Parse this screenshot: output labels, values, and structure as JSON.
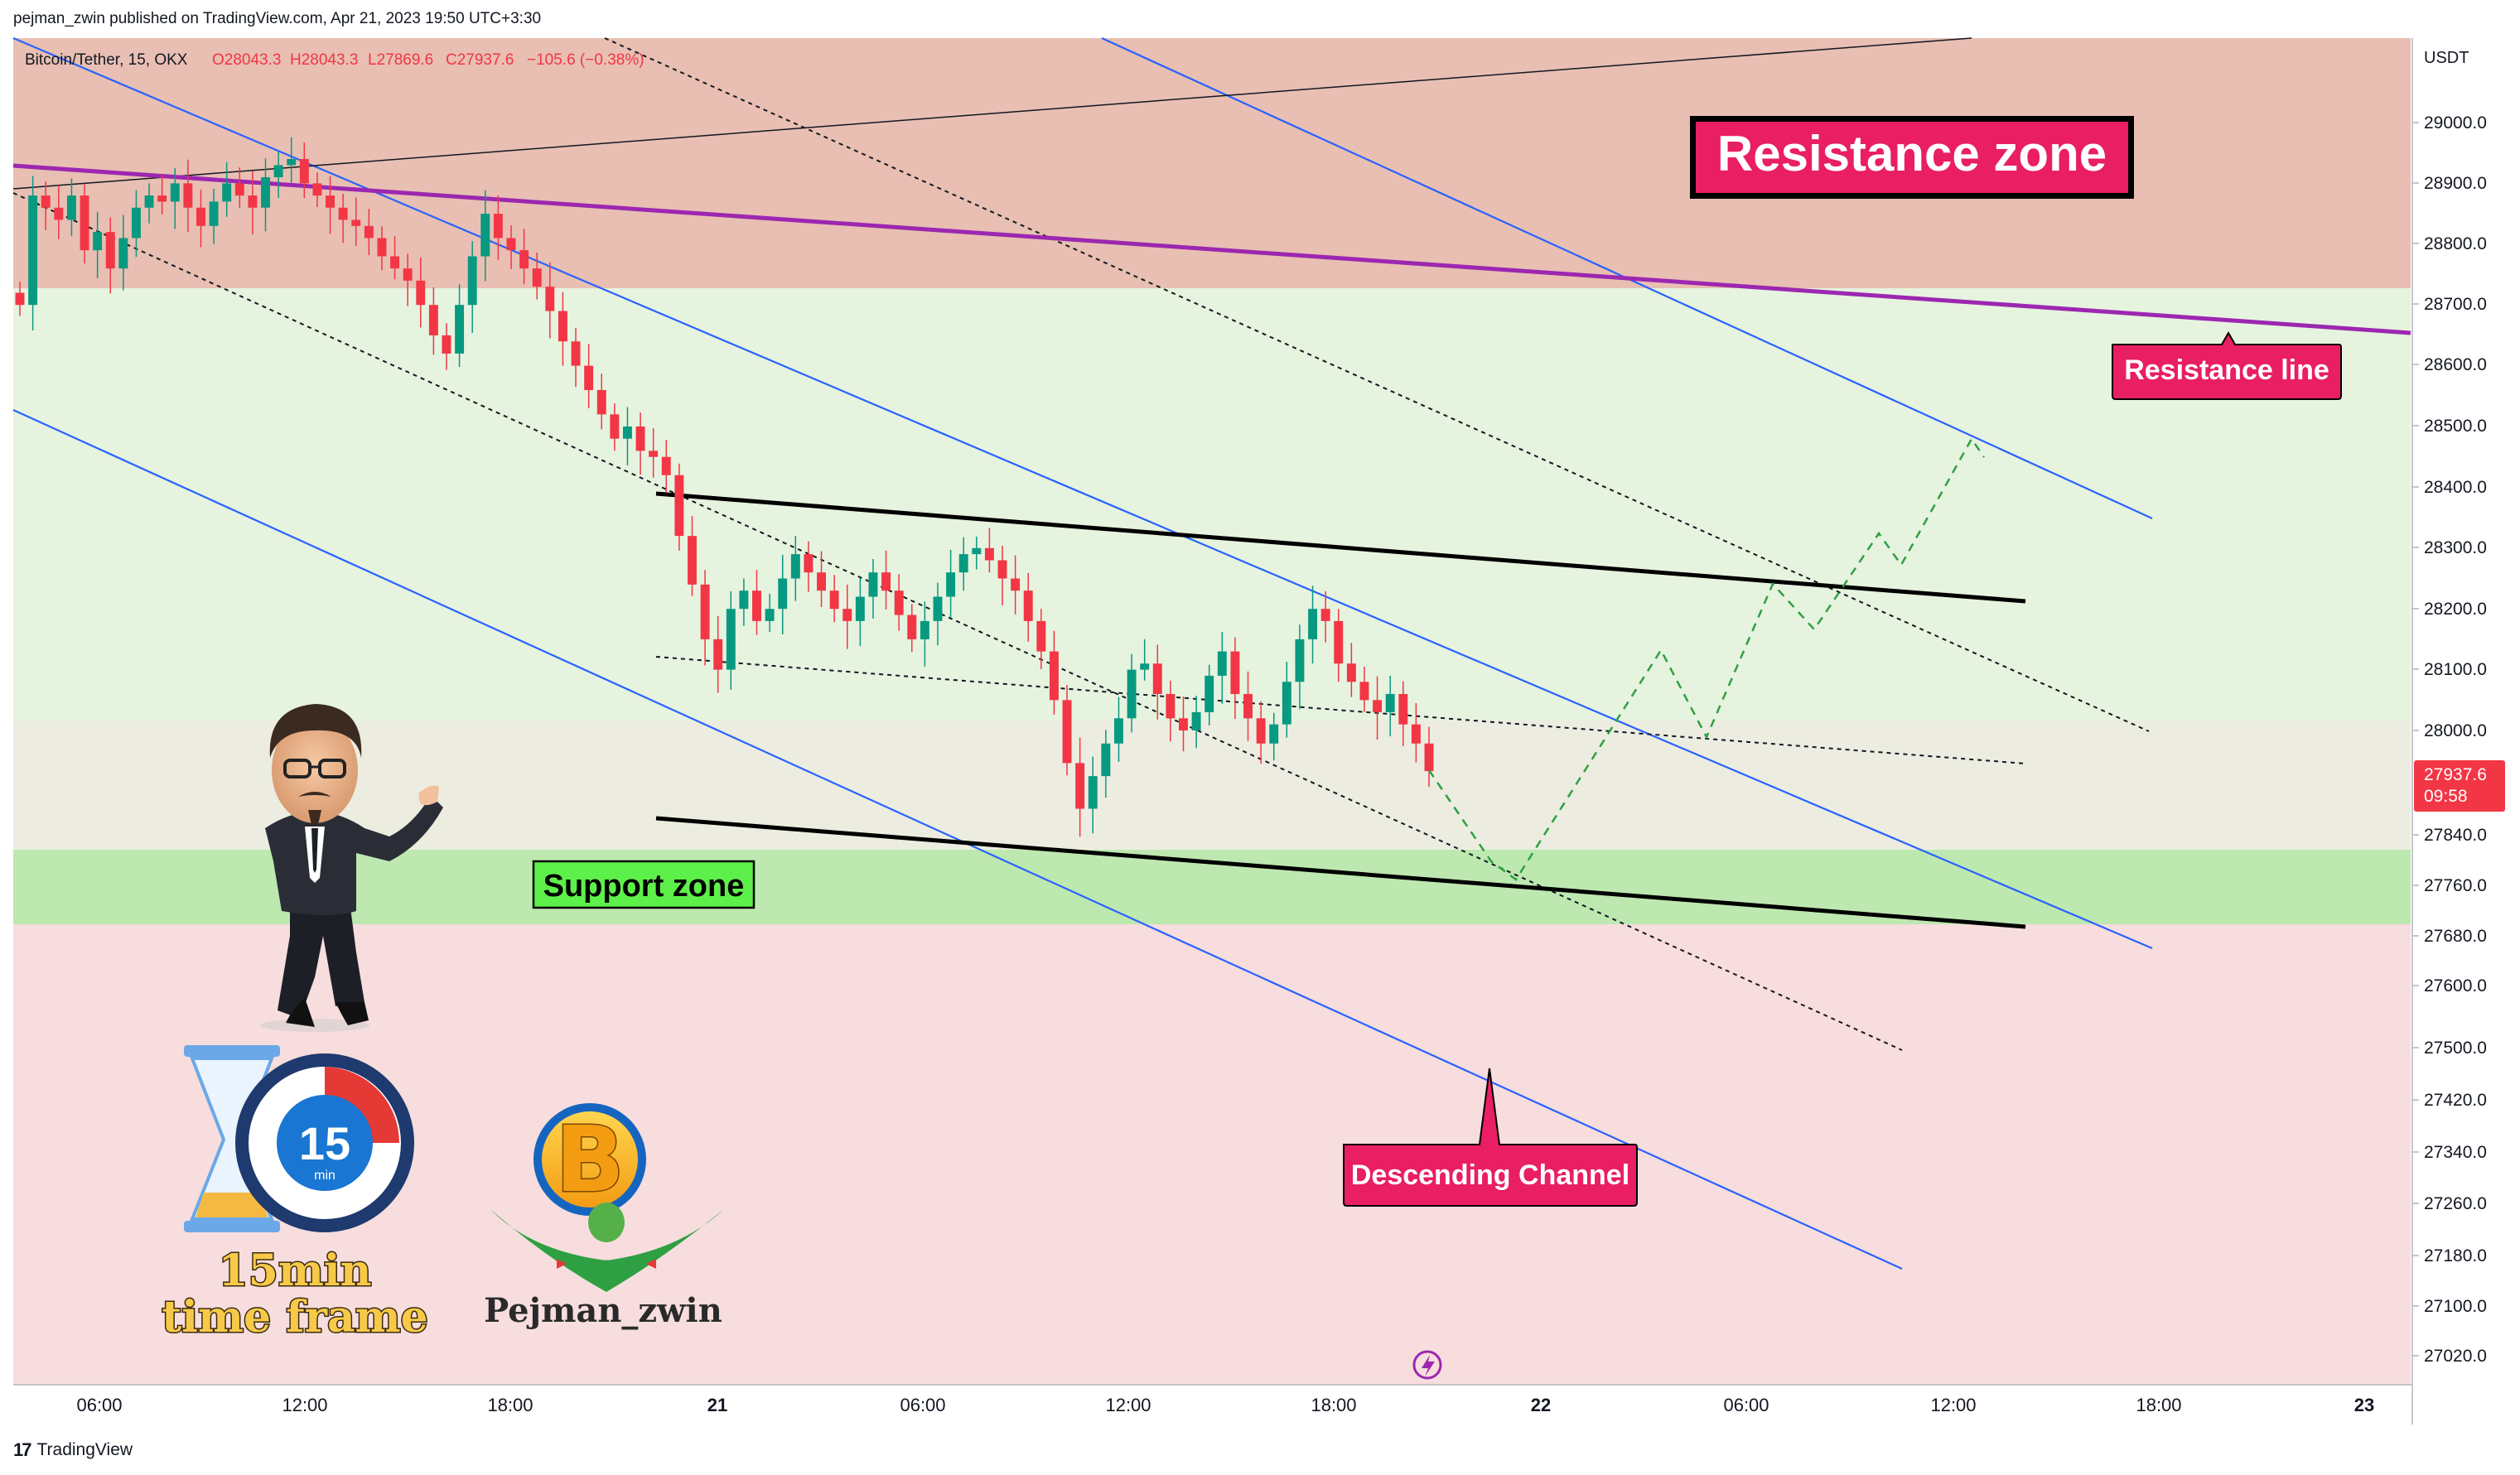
{
  "header": {
    "published": "pejman_zwin published on TradingView.com, Apr 21, 2023 19:50 UTC+3:30",
    "symbol_line": "Bitcoin/Tether, 15, OKX",
    "ohlc": {
      "o": "O28043.3",
      "h": "H28043.3",
      "l": "L27869.6",
      "c": "C27937.6",
      "chg": "−105.6 (−0.38%)"
    }
  },
  "footer": {
    "brand": "TradingView",
    "logo": "17"
  },
  "price_axis": {
    "currency": "USDT",
    "ticks": [
      "29000.0",
      "28900.0",
      "28800.0",
      "28700.0",
      "28600.0",
      "28500.0",
      "28400.0",
      "28300.0",
      "28200.0",
      "28100.0",
      "28000.0",
      "27840.0",
      "27760.0",
      "27680.0",
      "27600.0",
      "27500.0",
      "27420.0",
      "27340.0",
      "27260.0",
      "27180.0",
      "27100.0",
      "27020.0"
    ],
    "last_price": "27937.6",
    "countdown": "09:58"
  },
  "time_axis": {
    "ticks": [
      "06:00",
      "12:00",
      "18:00",
      "21",
      "06:00",
      "12:00",
      "18:00",
      "22",
      "06:00",
      "12:00",
      "18:00",
      "23"
    ]
  },
  "annotations": {
    "resistance_zone": "Resistance zone",
    "resistance_line": "Resistance line",
    "support_zone": "Support zone",
    "descending_channel": "Descending Channel",
    "timeframe_badge": "15",
    "timeframe_unit": "min",
    "timeframe_text_1": "15min",
    "timeframe_text_2": "time frame",
    "author": "Pejman_zwin",
    "logo_letter": "B"
  },
  "colors": {
    "resistance_zone": "#e8bfb2",
    "upper_bg": "#e6f3df",
    "support_zone": "#bde8b0",
    "lower_bg": "#f7dddd",
    "up_candle": "#089981",
    "down_candle": "#f23645",
    "channel_blue": "#2962ff",
    "resistance_purple": "#9c27b0",
    "forecast_green": "#2ea043",
    "label_red": "#e91e63"
  },
  "chart_data": {
    "type": "candlestick",
    "symbol": "Bitcoin/Tether",
    "interval": "15",
    "exchange": "OKX",
    "last": 27937.6,
    "zones": {
      "resistance_zone": [
        28720,
        29140
      ],
      "support_zone": [
        27685,
        27808
      ]
    },
    "candles_close": [
      28700,
      28880,
      28860,
      28840,
      28880,
      28790,
      28820,
      28760,
      28810,
      28860,
      28880,
      28870,
      28900,
      28860,
      28830,
      28870,
      28900,
      28880,
      28860,
      28910,
      28930,
      28940,
      28900,
      28880,
      28860,
      28840,
      28830,
      28810,
      28780,
      28760,
      28740,
      28700,
      28650,
      28620,
      28700,
      28780,
      28850,
      28810,
      28790,
      28760,
      28730,
      28690,
      28640,
      28600,
      28560,
      28520,
      28480,
      28500,
      28460,
      28450,
      28420,
      28320,
      28240,
      28150,
      28100,
      28200,
      28230,
      28180,
      28200,
      28250,
      28290,
      28260,
      28230,
      28200,
      28180,
      28220,
      28260,
      28230,
      28190,
      28150,
      28180,
      28220,
      28260,
      28290,
      28300,
      28280,
      28250,
      28230,
      28180,
      28130,
      28050,
      27950,
      27880,
      27930,
      27980,
      28020,
      28100,
      28110,
      28060,
      28020,
      28000,
      28030,
      28090,
      28130,
      28060,
      28020,
      27980,
      28010,
      28080,
      28150,
      28200,
      28180,
      28110,
      28080,
      28050,
      28030,
      28060,
      28010,
      27980,
      27937.6
    ]
  }
}
